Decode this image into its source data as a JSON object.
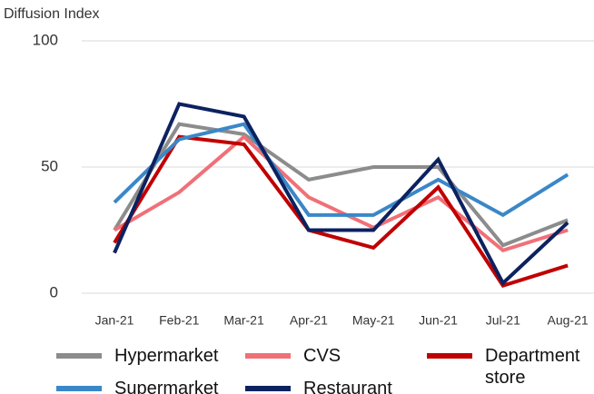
{
  "chart_data": {
    "type": "line",
    "ylabel": "Diffusion Index",
    "categories": [
      "Jan-21",
      "Feb-21",
      "Mar-21",
      "Apr-21",
      "May-21",
      "Jun-21",
      "Jul-21",
      "Aug-21"
    ],
    "series": [
      {
        "name": "Hypermarket",
        "color": "#8c8c8c",
        "values": [
          25,
          67,
          63,
          45,
          50,
          50,
          19,
          29
        ]
      },
      {
        "name": "CVS",
        "color": "#f07078",
        "values": [
          25,
          40,
          62,
          38,
          26,
          38,
          17,
          25
        ]
      },
      {
        "name": "Department store",
        "color": "#c00000",
        "values": [
          20,
          62,
          59,
          25,
          18,
          42,
          3,
          11
        ]
      },
      {
        "name": "Supermarket",
        "color": "#3a87c8",
        "values": [
          36,
          61,
          67,
          31,
          31,
          45,
          31,
          47
        ]
      },
      {
        "name": "Restaurant",
        "color": "#0c2260",
        "values": [
          16,
          75,
          70,
          25,
          25,
          53,
          4,
          28
        ]
      }
    ],
    "ylim": [
      0,
      100
    ],
    "yticks": [
      0,
      50,
      100
    ],
    "grid": true
  }
}
